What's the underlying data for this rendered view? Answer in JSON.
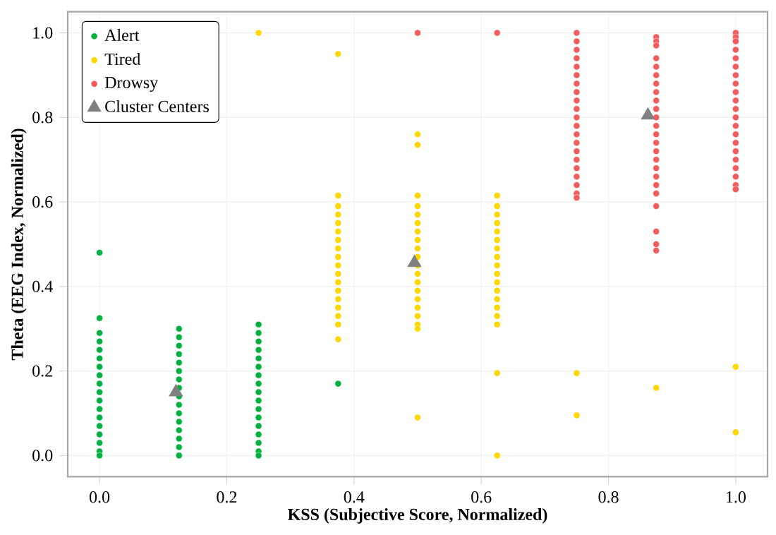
{
  "chart_data": {
    "type": "scatter",
    "xlabel": "KSS (Subjective Score, Normalized)",
    "ylabel": "Theta (EEG Index, Normalized)",
    "xlim": [
      -0.05,
      1.05
    ],
    "ylim": [
      -0.05,
      1.05
    ],
    "xticks": [
      {
        "value": 0,
        "label": "0.0"
      },
      {
        "value": 0.2,
        "label": "0.2"
      },
      {
        "value": 0.4,
        "label": "0.4"
      },
      {
        "value": 0.6,
        "label": "0.6"
      },
      {
        "value": 0.8,
        "label": "0.8"
      },
      {
        "value": 1,
        "label": "1.0"
      }
    ],
    "yticks": [
      {
        "value": 0,
        "label": "0.0"
      },
      {
        "value": 0.2,
        "label": "0.2"
      },
      {
        "value": 0.4,
        "label": "0.4"
      },
      {
        "value": 0.6,
        "label": "0.6"
      },
      {
        "value": 0.8,
        "label": "0.8"
      },
      {
        "value": 1,
        "label": "1.0"
      }
    ],
    "grid": true,
    "legend": "top left",
    "series": [
      {
        "name": "Alert",
        "color": "#00b140",
        "marker": "circle",
        "x": [
          0,
          0,
          0,
          0,
          0,
          0,
          0,
          0,
          0,
          0,
          0,
          0,
          0,
          0,
          0,
          0,
          0,
          0,
          0.125,
          0.125,
          0.125,
          0.125,
          0.125,
          0.125,
          0.125,
          0.125,
          0.125,
          0.125,
          0.125,
          0.125,
          0.125,
          0.125,
          0.125,
          0.125,
          0.25,
          0.25,
          0.25,
          0.25,
          0.25,
          0.25,
          0.25,
          0.25,
          0.25,
          0.25,
          0.25,
          0.25,
          0.25,
          0.25,
          0.25,
          0.25,
          0.25,
          0.375
        ],
        "values": [
          0.48,
          0.325,
          0.29,
          0.27,
          0.25,
          0.23,
          0.21,
          0.19,
          0.17,
          0.15,
          0.13,
          0.11,
          0.09,
          0.07,
          0.05,
          0.03,
          0.01,
          0.0,
          0.3,
          0.28,
          0.26,
          0.24,
          0.22,
          0.2,
          0.18,
          0.16,
          0.14,
          0.12,
          0.1,
          0.08,
          0.06,
          0.04,
          0.02,
          0.0,
          0.31,
          0.29,
          0.27,
          0.25,
          0.23,
          0.21,
          0.19,
          0.17,
          0.15,
          0.13,
          0.11,
          0.09,
          0.07,
          0.05,
          0.03,
          0.01,
          0.0,
          0.17
        ]
      },
      {
        "name": "Tired",
        "color": "#ffd700",
        "marker": "circle",
        "x": [
          0.25,
          0.375,
          0.375,
          0.375,
          0.375,
          0.375,
          0.375,
          0.375,
          0.375,
          0.375,
          0.375,
          0.375,
          0.375,
          0.375,
          0.375,
          0.375,
          0.375,
          0.375,
          0.375,
          0.5,
          0.5,
          0.5,
          0.5,
          0.5,
          0.5,
          0.5,
          0.5,
          0.5,
          0.5,
          0.5,
          0.5,
          0.5,
          0.5,
          0.5,
          0.5,
          0.5,
          0.5,
          0.5,
          0.5,
          0.625,
          0.625,
          0.625,
          0.625,
          0.625,
          0.625,
          0.625,
          0.625,
          0.625,
          0.625,
          0.625,
          0.625,
          0.625,
          0.625,
          0.625,
          0.625,
          0.625,
          0.625,
          0.75,
          0.75,
          0.875,
          1.0,
          1.0
        ],
        "values": [
          1.0,
          0.95,
          0.615,
          0.59,
          0.57,
          0.55,
          0.53,
          0.51,
          0.49,
          0.47,
          0.45,
          0.43,
          0.41,
          0.39,
          0.37,
          0.35,
          0.33,
          0.31,
          0.275,
          0.76,
          0.735,
          0.615,
          0.59,
          0.57,
          0.55,
          0.53,
          0.51,
          0.49,
          0.47,
          0.45,
          0.43,
          0.41,
          0.39,
          0.37,
          0.35,
          0.33,
          0.31,
          0.3,
          0.09,
          0.615,
          0.59,
          0.57,
          0.55,
          0.53,
          0.51,
          0.49,
          0.47,
          0.45,
          0.43,
          0.41,
          0.39,
          0.37,
          0.35,
          0.33,
          0.31,
          0.195,
          0.0,
          0.195,
          0.095,
          0.16,
          0.21,
          0.055
        ]
      },
      {
        "name": "Drowsy",
        "color": "#f25c5c",
        "marker": "circle",
        "x": [
          0.5,
          0.625,
          0.75,
          0.75,
          0.75,
          0.75,
          0.75,
          0.75,
          0.75,
          0.75,
          0.75,
          0.75,
          0.75,
          0.75,
          0.75,
          0.75,
          0.75,
          0.75,
          0.75,
          0.75,
          0.75,
          0.75,
          0.75,
          0.875,
          0.875,
          0.875,
          0.875,
          0.875,
          0.875,
          0.875,
          0.875,
          0.875,
          0.875,
          0.875,
          0.875,
          0.875,
          0.875,
          0.875,
          0.875,
          0.875,
          0.875,
          0.875,
          0.875,
          0.875,
          0.875,
          0.875,
          0.875,
          1.0,
          1.0,
          1.0,
          1.0,
          1.0,
          1.0,
          1.0,
          1.0,
          1.0,
          1.0,
          1.0,
          1.0,
          1.0,
          1.0,
          1.0,
          1.0,
          1.0,
          1.0,
          1.0,
          1.0,
          1.0
        ],
        "values": [
          1.0,
          1.0,
          1.0,
          0.98,
          0.96,
          0.94,
          0.92,
          0.9,
          0.88,
          0.86,
          0.84,
          0.82,
          0.8,
          0.78,
          0.76,
          0.74,
          0.72,
          0.7,
          0.68,
          0.66,
          0.64,
          0.62,
          0.61,
          0.99,
          0.98,
          0.97,
          0.94,
          0.92,
          0.9,
          0.88,
          0.86,
          0.84,
          0.82,
          0.8,
          0.78,
          0.76,
          0.74,
          0.72,
          0.7,
          0.68,
          0.66,
          0.64,
          0.62,
          0.59,
          0.53,
          0.5,
          0.485,
          1.0,
          0.99,
          0.98,
          0.96,
          0.94,
          0.92,
          0.9,
          0.88,
          0.86,
          0.84,
          0.82,
          0.8,
          0.78,
          0.76,
          0.74,
          0.72,
          0.7,
          0.68,
          0.66,
          0.64,
          0.63
        ]
      },
      {
        "name": "Cluster Centers",
        "color": "#808080",
        "marker": "triangle",
        "x": [
          0.12,
          0.495,
          0.862
        ],
        "values": [
          0.15,
          0.456,
          0.805
        ]
      }
    ]
  }
}
